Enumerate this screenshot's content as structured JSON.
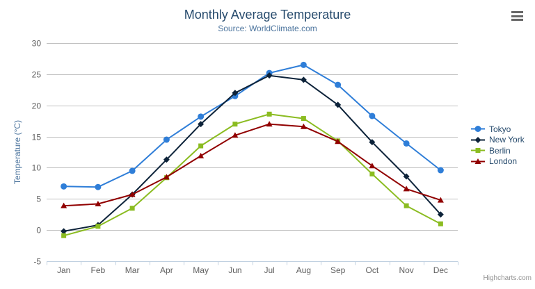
{
  "chart": {
    "title": "Monthly Average Temperature",
    "subtitle": "Source: WorldClimate.com",
    "y_axis_title": "Temperature (°C)",
    "credits": "Highcharts.com"
  },
  "chart_data": {
    "type": "line",
    "title": "Monthly Average Temperature",
    "subtitle": "Source: WorldClimate.com",
    "xlabel": "",
    "ylabel": "Temperature (°C)",
    "categories": [
      "Jan",
      "Feb",
      "Mar",
      "Apr",
      "May",
      "Jun",
      "Jul",
      "Aug",
      "Sep",
      "Oct",
      "Nov",
      "Dec"
    ],
    "series": [
      {
        "name": "Tokyo",
        "color": "#2f7ed8",
        "marker": "circle",
        "values": [
          7.0,
          6.9,
          9.5,
          14.5,
          18.2,
          21.5,
          25.2,
          26.5,
          23.3,
          18.3,
          13.9,
          9.6
        ]
      },
      {
        "name": "New York",
        "color": "#0d233a",
        "marker": "diamond",
        "values": [
          -0.2,
          0.8,
          5.7,
          11.3,
          17.0,
          22.0,
          24.8,
          24.1,
          20.1,
          14.1,
          8.6,
          2.5
        ]
      },
      {
        "name": "Berlin",
        "color": "#8bbc21",
        "marker": "square",
        "values": [
          -0.9,
          0.6,
          3.5,
          8.4,
          13.5,
          17.0,
          18.6,
          17.9,
          14.3,
          9.0,
          3.9,
          1.0
        ]
      },
      {
        "name": "London",
        "color": "#910000",
        "marker": "triangle",
        "values": [
          3.9,
          4.2,
          5.7,
          8.5,
          11.9,
          15.2,
          17.0,
          16.6,
          14.2,
          10.3,
          6.6,
          4.8
        ]
      }
    ],
    "ylim": [
      -5,
      30
    ],
    "ytick_step": 5,
    "grid": true,
    "legend_position": "right"
  },
  "theme": {
    "background": "#ffffff",
    "title_color": "#274b6d",
    "subtitle_color": "#4d759e",
    "axis_label_color": "#606060",
    "y_axis_title_color": "#4d759e",
    "grid_color": "#c0c0c0",
    "axis_line_color": "#c0d0e0",
    "legend_text_color": "#274b6d",
    "credits_color": "#909090",
    "menu_icon_color": "#666666"
  }
}
